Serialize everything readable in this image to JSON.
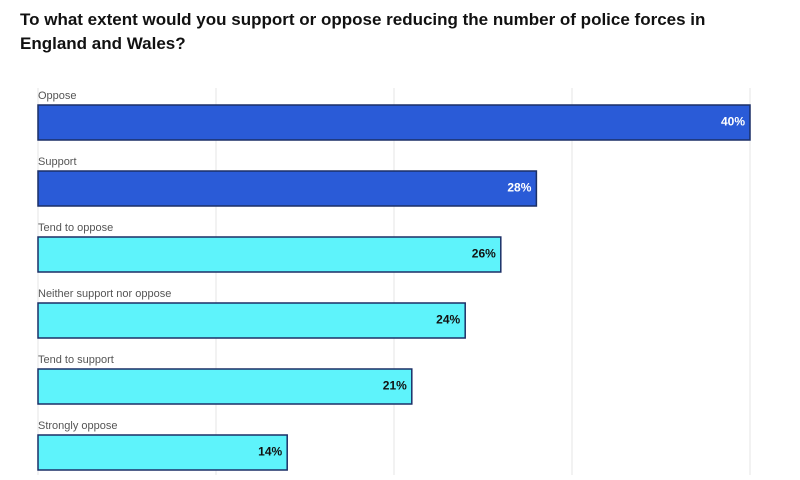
{
  "chart_data": {
    "type": "bar",
    "orientation": "horizontal",
    "title": "To what extent would you support or oppose reducing the number of police forces in England and Wales?",
    "categories": [
      "Oppose",
      "Support",
      "Tend to oppose",
      "Neither support nor oppose",
      "Tend to support",
      "Strongly oppose"
    ],
    "values": [
      40,
      28,
      26,
      24,
      21,
      14
    ],
    "value_labels": [
      "40%",
      "28%",
      "26%",
      "24%",
      "21%",
      "14%"
    ],
    "colors": [
      "#2a5bd7",
      "#2a5bd7",
      "#5ef3fb",
      "#5ef3fb",
      "#5ef3fb",
      "#5ef3fb"
    ],
    "xlim": [
      0,
      40
    ],
    "xticks": [
      0,
      10,
      20,
      30,
      40
    ],
    "grid": true
  }
}
